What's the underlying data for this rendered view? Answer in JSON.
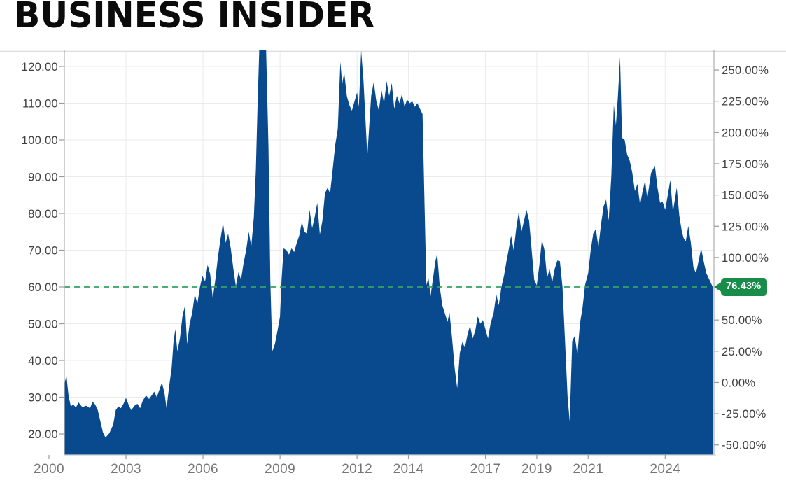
{
  "masthead": {
    "title": "BUSINESS INSIDER"
  },
  "chart_data": {
    "type": "area",
    "title": "",
    "grid": true,
    "legend": "none",
    "x_axis": {
      "range": [
        2000.6,
        2025.9
      ],
      "ticks": [
        2000,
        2003,
        2006,
        2009,
        2012,
        2014,
        2017,
        2019,
        2021,
        2024
      ],
      "tick_labels": [
        "2000",
        "2003",
        "2006",
        "2009",
        "2012",
        "2014",
        "2017",
        "2019",
        "2021",
        "2024"
      ]
    },
    "y_axis_left": {
      "range": [
        14.3,
        124.4
      ],
      "ticks": [
        120,
        110,
        100,
        90,
        80,
        70,
        60,
        50,
        40,
        30,
        20
      ],
      "tick_labels": [
        "120.00",
        "110.00",
        "100.00",
        "90.00",
        "80.00",
        "70.00",
        "60.00",
        "50.00",
        "40.00",
        "30.00",
        "20.00"
      ]
    },
    "y_axis_right": {
      "unit": "percent",
      "base_value": 34.01,
      "ticks": [
        250,
        225,
        200,
        175,
        150,
        125,
        100,
        50,
        25,
        0,
        -25,
        -50
      ],
      "tick_labels": [
        "250.00%",
        "225.00%",
        "200.00%",
        "175.00%",
        "150.00%",
        "125.00%",
        "100.00%",
        "50.00%",
        "25.00%",
        "0.00%",
        "-25.00%",
        "-50.00%"
      ]
    },
    "reference_line": {
      "value": 60.0,
      "percent_label": "76.43%",
      "style": "dashed"
    },
    "colors": {
      "area_fill": "#084a8d",
      "reference_line": "#35a065",
      "badge_background": "#178d49",
      "badge_text": "#ffffff",
      "grid_line": "#ebebeb",
      "axis_line": "#b5b5b5",
      "tick_mark": "#9a9a9a",
      "y_label_text": "#3f3f3f",
      "x_label_text": "#757575",
      "masthead_text": "#0b0b0b"
    },
    "series": [
      {
        "name": "main-series",
        "color": "#084a8d",
        "points": [
          [
            2000.6,
            33.5
          ],
          [
            2000.68,
            36
          ],
          [
            2000.76,
            30.5
          ],
          [
            2000.85,
            27.5
          ],
          [
            2000.95,
            28
          ],
          [
            2001.05,
            27.2
          ],
          [
            2001.15,
            28.6
          ],
          [
            2001.3,
            27.3
          ],
          [
            2001.45,
            27.7
          ],
          [
            2001.6,
            27
          ],
          [
            2001.7,
            28.8
          ],
          [
            2001.8,
            28
          ],
          [
            2001.9,
            26.5
          ],
          [
            2002.0,
            23.5
          ],
          [
            2002.1,
            20.5
          ],
          [
            2002.2,
            19
          ],
          [
            2002.35,
            20.2
          ],
          [
            2002.5,
            22.5
          ],
          [
            2002.6,
            26.5
          ],
          [
            2002.7,
            27.5
          ],
          [
            2002.8,
            27
          ],
          [
            2002.9,
            28.2
          ],
          [
            2003.0,
            29.8
          ],
          [
            2003.1,
            28
          ],
          [
            2003.2,
            26.5
          ],
          [
            2003.35,
            27.8
          ],
          [
            2003.45,
            28.2
          ],
          [
            2003.55,
            27
          ],
          [
            2003.65,
            29
          ],
          [
            2003.78,
            30.5
          ],
          [
            2003.9,
            29.5
          ],
          [
            2004.0,
            30.5
          ],
          [
            2004.1,
            31.5
          ],
          [
            2004.2,
            30
          ],
          [
            2004.3,
            32
          ],
          [
            2004.4,
            34
          ],
          [
            2004.5,
            31
          ],
          [
            2004.58,
            27
          ],
          [
            2004.68,
            33
          ],
          [
            2004.78,
            38
          ],
          [
            2004.85,
            45
          ],
          [
            2004.92,
            48.5
          ],
          [
            2005.0,
            42.5
          ],
          [
            2005.1,
            46
          ],
          [
            2005.2,
            52
          ],
          [
            2005.3,
            55
          ],
          [
            2005.38,
            44.5
          ],
          [
            2005.48,
            50
          ],
          [
            2005.58,
            53
          ],
          [
            2005.68,
            58
          ],
          [
            2005.78,
            55.5
          ],
          [
            2005.88,
            60
          ],
          [
            2005.98,
            63
          ],
          [
            2006.08,
            61.5
          ],
          [
            2006.18,
            66
          ],
          [
            2006.28,
            63.5
          ],
          [
            2006.38,
            57
          ],
          [
            2006.48,
            62
          ],
          [
            2006.58,
            68
          ],
          [
            2006.68,
            73
          ],
          [
            2006.78,
            77.5
          ],
          [
            2006.88,
            72
          ],
          [
            2006.98,
            74.5
          ],
          [
            2007.08,
            70.5
          ],
          [
            2007.18,
            65
          ],
          [
            2007.28,
            60.2
          ],
          [
            2007.38,
            64
          ],
          [
            2007.48,
            62
          ],
          [
            2007.58,
            66.5
          ],
          [
            2007.68,
            70
          ],
          [
            2007.78,
            75
          ],
          [
            2007.88,
            71
          ],
          [
            2007.98,
            79
          ],
          [
            2008.06,
            92
          ],
          [
            2008.12,
            108
          ],
          [
            2008.2,
            127
          ],
          [
            2008.45,
            127
          ],
          [
            2008.55,
            98
          ],
          [
            2008.62,
            62
          ],
          [
            2008.7,
            42.5
          ],
          [
            2008.8,
            44.5
          ],
          [
            2008.9,
            48
          ],
          [
            2009.0,
            52
          ],
          [
            2009.06,
            62
          ],
          [
            2009.14,
            70.5
          ],
          [
            2009.25,
            70
          ],
          [
            2009.35,
            68.8
          ],
          [
            2009.45,
            70.5
          ],
          [
            2009.55,
            69.5
          ],
          [
            2009.65,
            72
          ],
          [
            2009.75,
            74
          ],
          [
            2009.85,
            77.7
          ],
          [
            2009.95,
            75
          ],
          [
            2010.05,
            74.5
          ],
          [
            2010.15,
            81
          ],
          [
            2010.25,
            76
          ],
          [
            2010.35,
            79
          ],
          [
            2010.45,
            82.9
          ],
          [
            2010.55,
            74.3
          ],
          [
            2010.65,
            78
          ],
          [
            2010.75,
            85.5
          ],
          [
            2010.85,
            87
          ],
          [
            2010.95,
            85.5
          ],
          [
            2011.05,
            92
          ],
          [
            2011.15,
            98.7
          ],
          [
            2011.25,
            103
          ],
          [
            2011.35,
            121.3
          ],
          [
            2011.42,
            115.2
          ],
          [
            2011.5,
            118.4
          ],
          [
            2011.6,
            112
          ],
          [
            2011.7,
            109.5
          ],
          [
            2011.8,
            108
          ],
          [
            2011.9,
            110.5
          ],
          [
            2012.0,
            112.9
          ],
          [
            2012.07,
            109
          ],
          [
            2012.16,
            124.3
          ],
          [
            2012.25,
            116.2
          ],
          [
            2012.4,
            95.6
          ],
          [
            2012.55,
            112
          ],
          [
            2012.65,
            115.8
          ],
          [
            2012.75,
            110.5
          ],
          [
            2012.85,
            108
          ],
          [
            2012.95,
            113.5
          ],
          [
            2013.05,
            110
          ],
          [
            2013.15,
            116
          ],
          [
            2013.25,
            112
          ],
          [
            2013.35,
            115.5
          ],
          [
            2013.45,
            108.5
          ],
          [
            2013.55,
            112
          ],
          [
            2013.65,
            110
          ],
          [
            2013.75,
            112.5
          ],
          [
            2013.85,
            109
          ],
          [
            2013.95,
            111
          ],
          [
            2014.05,
            110
          ],
          [
            2014.15,
            110.5
          ],
          [
            2014.25,
            109
          ],
          [
            2014.35,
            110
          ],
          [
            2014.45,
            108.5
          ],
          [
            2014.55,
            107
          ],
          [
            2014.63,
            82
          ],
          [
            2014.7,
            60.5
          ],
          [
            2014.78,
            62.5
          ],
          [
            2014.86,
            57.5
          ],
          [
            2014.95,
            62
          ],
          [
            2015.05,
            67
          ],
          [
            2015.12,
            69.1
          ],
          [
            2015.22,
            60
          ],
          [
            2015.32,
            55
          ],
          [
            2015.42,
            52.8
          ],
          [
            2015.52,
            50.5
          ],
          [
            2015.6,
            53
          ],
          [
            2015.7,
            46
          ],
          [
            2015.8,
            38
          ],
          [
            2015.9,
            32.4
          ],
          [
            2016.0,
            42
          ],
          [
            2016.1,
            45
          ],
          [
            2016.2,
            43.5
          ],
          [
            2016.3,
            47
          ],
          [
            2016.4,
            49.5
          ],
          [
            2016.5,
            46
          ],
          [
            2016.6,
            48
          ],
          [
            2016.7,
            52
          ],
          [
            2016.8,
            50
          ],
          [
            2016.9,
            51
          ],
          [
            2017.0,
            48.5
          ],
          [
            2017.1,
            46
          ],
          [
            2017.2,
            50
          ],
          [
            2017.32,
            53
          ],
          [
            2017.42,
            58
          ],
          [
            2017.52,
            55
          ],
          [
            2017.62,
            60
          ],
          [
            2017.72,
            63
          ],
          [
            2017.82,
            67
          ],
          [
            2017.9,
            70
          ],
          [
            2018.0,
            74
          ],
          [
            2018.1,
            70
          ],
          [
            2018.2,
            76
          ],
          [
            2018.3,
            80.5
          ],
          [
            2018.4,
            75
          ],
          [
            2018.5,
            78
          ],
          [
            2018.6,
            81
          ],
          [
            2018.7,
            78
          ],
          [
            2018.8,
            70
          ],
          [
            2018.9,
            62
          ],
          [
            2019.0,
            60.4
          ],
          [
            2019.1,
            66
          ],
          [
            2019.2,
            72.8
          ],
          [
            2019.3,
            70
          ],
          [
            2019.4,
            62.5
          ],
          [
            2019.5,
            64.8
          ],
          [
            2019.6,
            61.3
          ],
          [
            2019.7,
            65
          ],
          [
            2019.8,
            67.2
          ],
          [
            2019.9,
            67
          ],
          [
            2020.0,
            60
          ],
          [
            2020.1,
            45
          ],
          [
            2020.2,
            30
          ],
          [
            2020.28,
            23.4
          ],
          [
            2020.38,
            45.3
          ],
          [
            2020.48,
            46.7
          ],
          [
            2020.58,
            41.5
          ],
          [
            2020.68,
            50
          ],
          [
            2020.78,
            54.3
          ],
          [
            2020.88,
            60.6
          ],
          [
            2021.0,
            63.8
          ],
          [
            2021.1,
            70
          ],
          [
            2021.2,
            74.6
          ],
          [
            2021.3,
            75.8
          ],
          [
            2021.4,
            70.8
          ],
          [
            2021.5,
            77
          ],
          [
            2021.6,
            81.9
          ],
          [
            2021.7,
            83.8
          ],
          [
            2021.8,
            78.1
          ],
          [
            2021.9,
            90
          ],
          [
            2022.0,
            109.5
          ],
          [
            2022.08,
            104
          ],
          [
            2022.16,
            112
          ],
          [
            2022.24,
            122.5
          ],
          [
            2022.32,
            100.6
          ],
          [
            2022.42,
            100
          ],
          [
            2022.52,
            96
          ],
          [
            2022.62,
            94.3
          ],
          [
            2022.72,
            91
          ],
          [
            2022.82,
            86.1
          ],
          [
            2022.92,
            88
          ],
          [
            2023.02,
            82.3
          ],
          [
            2023.12,
            86
          ],
          [
            2023.22,
            89
          ],
          [
            2023.3,
            84
          ],
          [
            2023.45,
            91
          ],
          [
            2023.6,
            93
          ],
          [
            2023.7,
            87
          ],
          [
            2023.8,
            82.9
          ],
          [
            2023.9,
            83.2
          ],
          [
            2024.0,
            81
          ],
          [
            2024.1,
            85
          ],
          [
            2024.2,
            89.1
          ],
          [
            2024.3,
            80.4
          ],
          [
            2024.45,
            87
          ],
          [
            2024.55,
            79.4
          ],
          [
            2024.65,
            75
          ],
          [
            2024.72,
            73.3
          ],
          [
            2024.8,
            72.4
          ],
          [
            2024.9,
            76.6
          ],
          [
            2025.0,
            72
          ],
          [
            2025.1,
            65.3
          ],
          [
            2025.2,
            63.8
          ],
          [
            2025.3,
            67
          ],
          [
            2025.4,
            70.5
          ],
          [
            2025.5,
            67
          ],
          [
            2025.6,
            63.8
          ],
          [
            2025.72,
            62
          ],
          [
            2025.85,
            60
          ]
        ]
      }
    ]
  }
}
